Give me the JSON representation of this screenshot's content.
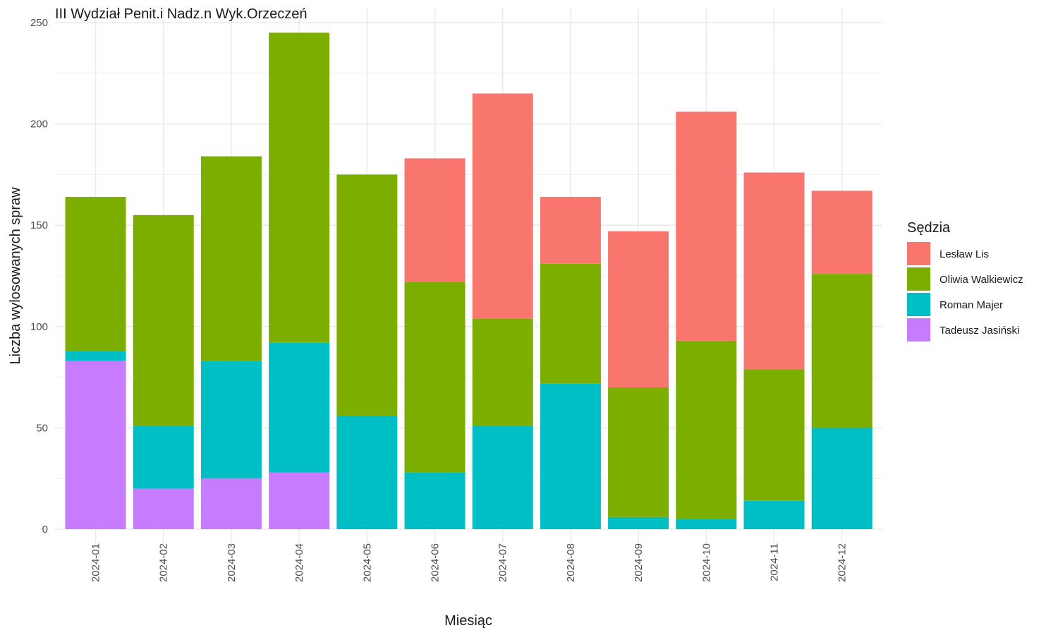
{
  "chart_data": {
    "type": "bar",
    "stacked": true,
    "title": "III Wydział Penit.i Nadz.n Wyk.Orzeczeń",
    "xlabel": "Miesiąc",
    "ylabel": "Liczba wylosowanych spraw",
    "ylim": [
      0,
      250
    ],
    "yticks": [
      "0",
      "50",
      "100",
      "150",
      "200",
      "250"
    ],
    "grid": true,
    "legend_title": "Sędzia",
    "legend_position": "right",
    "categories": [
      "2024-01",
      "2024-02",
      "2024-03",
      "2024-04",
      "2024-05",
      "2024-06",
      "2024-07",
      "2024-08",
      "2024-09",
      "2024-10",
      "2024-11",
      "2024-12"
    ],
    "series": [
      {
        "name": "Lesław Lis",
        "color": "#F8766D",
        "values": [
          0,
          0,
          0,
          0,
          0,
          61,
          111,
          33,
          77,
          113,
          97,
          41
        ]
      },
      {
        "name": "Oliwia Walkiewicz",
        "color": "#7CAE00",
        "values": [
          76,
          104,
          101,
          153,
          119,
          94,
          53,
          59,
          64,
          88,
          65,
          76
        ]
      },
      {
        "name": "Roman Majer",
        "color": "#00BFC4",
        "values": [
          5,
          31,
          58,
          64,
          56,
          28,
          51,
          72,
          6,
          5,
          14,
          50
        ]
      },
      {
        "name": "Tadeusz Jasiński",
        "color": "#C77CFF",
        "values": [
          83,
          20,
          25,
          28,
          0,
          0,
          0,
          0,
          0,
          0,
          0,
          0
        ]
      }
    ]
  }
}
